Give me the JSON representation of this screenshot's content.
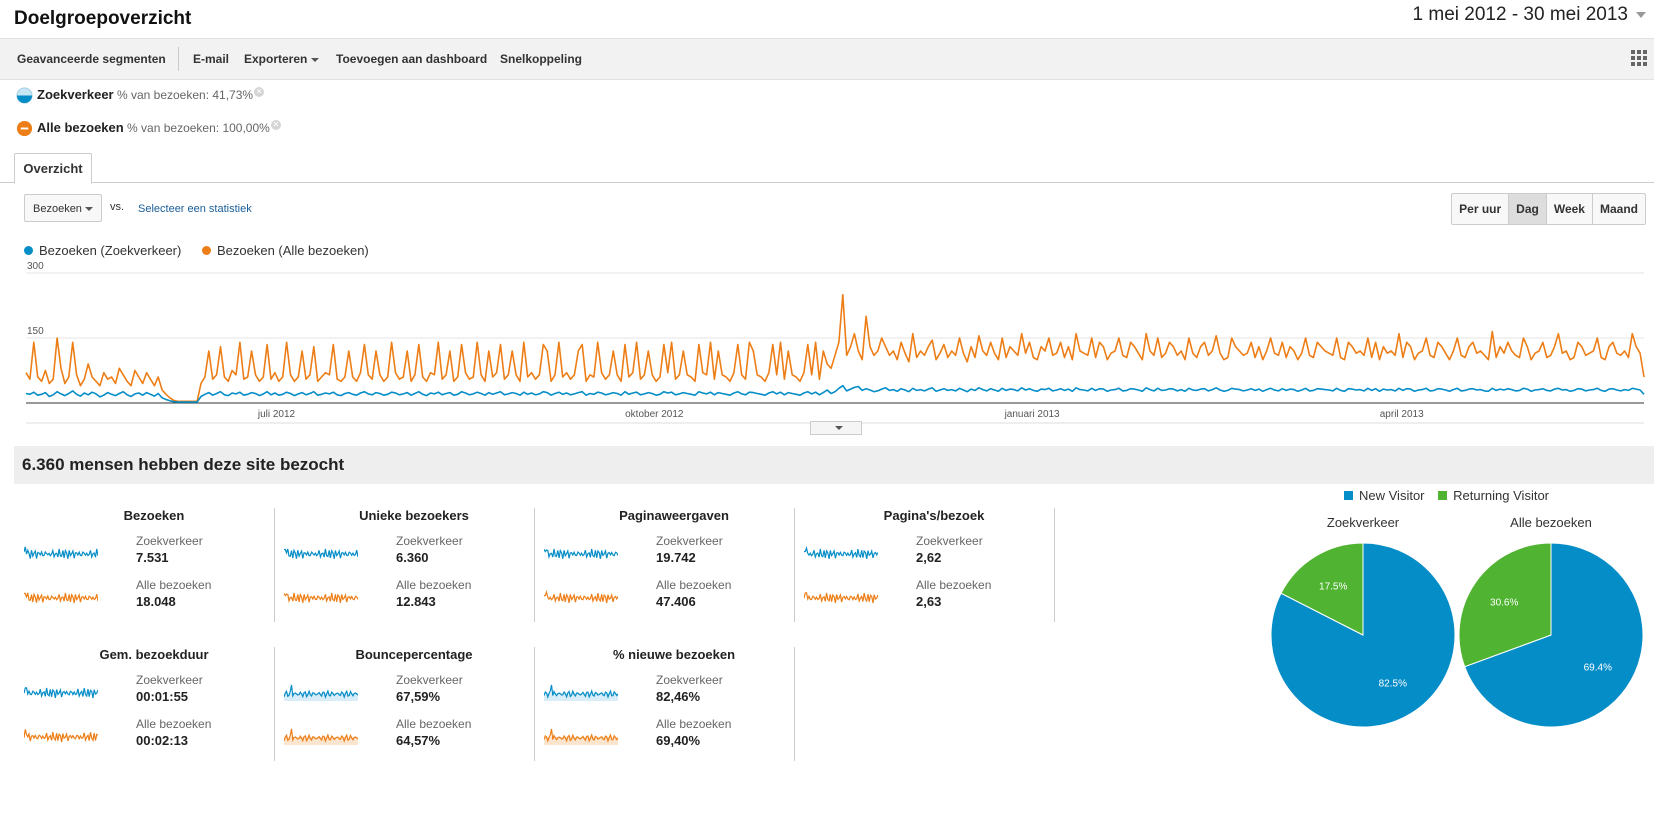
{
  "page": {
    "title": "Doelgroepoverzicht",
    "date_range": "1 mei 2012 - 30 mei 2013"
  },
  "toolbar": {
    "items": [
      "Geavanceerde segmenten",
      "E-mail",
      "Exporteren",
      "Toevoegen aan dashboard",
      "Snelkoppeling"
    ]
  },
  "segments": [
    {
      "name": "Zoekverkeer",
      "desc": "% van bezoeken: 41,73%",
      "color": "#058dc7"
    },
    {
      "name": "Alle bezoeken",
      "desc": "% van bezoeken: 100,00%",
      "color": "#ed7e17"
    }
  ],
  "tabs": {
    "overview": "Overzicht"
  },
  "controls": {
    "metric": "Bezoeken",
    "vs": "vs.",
    "select_stat": "Selecteer een statistiek",
    "periods": [
      "Per uur",
      "Dag",
      "Week",
      "Maand"
    ],
    "active_period": "Dag"
  },
  "colors": {
    "search": "#058dc7",
    "all": "#ed7e17",
    "new_visitor": "#058dc7",
    "returning_visitor": "#50b432"
  },
  "chart_data": [
    {
      "type": "line",
      "x_start": "2012-05-01",
      "x_end": "2013-05-30",
      "ylim": [
        0,
        300
      ],
      "yticks": [
        "300",
        "150"
      ],
      "xticks": [
        "juli 2012",
        "oktober 2012",
        "januari 2013",
        "april 2013"
      ],
      "grid": true,
      "legend": "top-left",
      "series": [
        {
          "name": "Bezoeken (Zoekverkeer)",
          "color": "#058dc7",
          "values": [
            22,
            20,
            25,
            18,
            20,
            24,
            15,
            19,
            26,
            21,
            17,
            22,
            28,
            20,
            16,
            23,
            19,
            25,
            21,
            14,
            18,
            24,
            20,
            17,
            22,
            26,
            19,
            15,
            21,
            23,
            18,
            24,
            20,
            16,
            22,
            12,
            8,
            5,
            3,
            2,
            2,
            2,
            2,
            2,
            2,
            15,
            20,
            24,
            18,
            22,
            26,
            19,
            17,
            23,
            21,
            25,
            18,
            20,
            24,
            22,
            17,
            21,
            26,
            19,
            23,
            18,
            20,
            25,
            22,
            17,
            21,
            24,
            19,
            22,
            26,
            18,
            20,
            23,
            21,
            25,
            19,
            17,
            22,
            24,
            20,
            18,
            23,
            26,
            21,
            19,
            24,
            22,
            18,
            20,
            25,
            23,
            19,
            21,
            24,
            18,
            22,
            26,
            20,
            17,
            23,
            21,
            25,
            19,
            22,
            24,
            18,
            20,
            26,
            23,
            19,
            21,
            25,
            22,
            18,
            24,
            20,
            23,
            26,
            19,
            21,
            24,
            22,
            18,
            25,
            20,
            23,
            19,
            21,
            26,
            24,
            18,
            22,
            25,
            20,
            23,
            19,
            21,
            24,
            26,
            18,
            22,
            20,
            25,
            23,
            19,
            21,
            24,
            22,
            18,
            26,
            20,
            23,
            25,
            19,
            21,
            24,
            22,
            18,
            20,
            26,
            23,
            25,
            19,
            21,
            24,
            22,
            20,
            18,
            26,
            23,
            21,
            25,
            19,
            24,
            22,
            20,
            18,
            23,
            26,
            21,
            19,
            25,
            24,
            22,
            20,
            18,
            23,
            26,
            21,
            25,
            19,
            24,
            22,
            20,
            18,
            23,
            26,
            21,
            25,
            19,
            24,
            30,
            22,
            26,
            34,
            40,
            28,
            32,
            36,
            38,
            29,
            33,
            30,
            26,
            28,
            32,
            35,
            29,
            31,
            27,
            33,
            30,
            26,
            34,
            29,
            31,
            28,
            32,
            35,
            27,
            30,
            33,
            29,
            31,
            28,
            34,
            30,
            26,
            32,
            29,
            35,
            31,
            28,
            33,
            30,
            27,
            34,
            29,
            32,
            31,
            28,
            35,
            30,
            33,
            29,
            27,
            32,
            31,
            34,
            28,
            30,
            33,
            29,
            32,
            27,
            35,
            31,
            30,
            28,
            34,
            29,
            33,
            32,
            27,
            30,
            31,
            34,
            28,
            29,
            33,
            32,
            30,
            27,
            35,
            31,
            28,
            34,
            29,
            30,
            33,
            32,
            28,
            31,
            27,
            34,
            30,
            29,
            32,
            33,
            28,
            31,
            35,
            30,
            27,
            29,
            34,
            32,
            31,
            28,
            30,
            33,
            29,
            32,
            27,
            31,
            34,
            30,
            28,
            33,
            29,
            32,
            31,
            27,
            30,
            34,
            28,
            29,
            33,
            32,
            31,
            30,
            28,
            34,
            29,
            27,
            33,
            32,
            30,
            31,
            28,
            34,
            29,
            33,
            27,
            32,
            30,
            31,
            28,
            34,
            29,
            33,
            32,
            27,
            30,
            31,
            34,
            28,
            29,
            33,
            32,
            30,
            27,
            31,
            34,
            28,
            29,
            32,
            33,
            30,
            31,
            28,
            27,
            34,
            29,
            32,
            30,
            33,
            31,
            28,
            29,
            34,
            32,
            27,
            30,
            31,
            33,
            29,
            28,
            32,
            34,
            30,
            31,
            27,
            29,
            33,
            32,
            28,
            30,
            31,
            34,
            29,
            27,
            32,
            33,
            30,
            28,
            31,
            29,
            34,
            32,
            30,
            20
          ]
        },
        {
          "name": "Bezoeken (Alle bezoeken)",
          "color": "#ed7e17",
          "values": [
            70,
            55,
            140,
            60,
            50,
            75,
            45,
            55,
            150,
            80,
            45,
            60,
            140,
            65,
            40,
            55,
            90,
            60,
            50,
            40,
            70,
            55,
            60,
            45,
            80,
            65,
            50,
            40,
            75,
            60,
            45,
            70,
            55,
            40,
            60,
            30,
            20,
            12,
            6,
            4,
            4,
            4,
            4,
            4,
            4,
            45,
            60,
            120,
            55,
            65,
            130,
            60,
            50,
            75,
            65,
            140,
            55,
            60,
            120,
            65,
            50,
            60,
            135,
            55,
            70,
            50,
            60,
            140,
            65,
            50,
            60,
            120,
            55,
            65,
            130,
            50,
            60,
            70,
            65,
            135,
            55,
            50,
            60,
            120,
            60,
            50,
            70,
            135,
            65,
            55,
            120,
            65,
            50,
            60,
            140,
            70,
            55,
            60,
            120,
            50,
            65,
            135,
            60,
            50,
            70,
            65,
            140,
            55,
            65,
            120,
            50,
            60,
            135,
            70,
            55,
            60,
            140,
            65,
            50,
            120,
            60,
            70,
            135,
            55,
            65,
            120,
            65,
            50,
            140,
            60,
            70,
            55,
            65,
            135,
            120,
            50,
            65,
            140,
            60,
            70,
            55,
            65,
            120,
            135,
            50,
            65,
            60,
            140,
            70,
            55,
            65,
            120,
            65,
            50,
            135,
            60,
            70,
            140,
            55,
            65,
            120,
            65,
            50,
            60,
            135,
            70,
            140,
            55,
            65,
            120,
            65,
            60,
            50,
            135,
            70,
            65,
            140,
            55,
            120,
            65,
            60,
            50,
            70,
            135,
            65,
            55,
            140,
            120,
            65,
            60,
            50,
            70,
            135,
            65,
            140,
            55,
            120,
            65,
            60,
            50,
            70,
            135,
            65,
            140,
            55,
            120,
            90,
            80,
            110,
            140,
            250,
            110,
            130,
            160,
            120,
            100,
            200,
            130,
            110,
            120,
            150,
            130,
            110,
            120,
            100,
            140,
            115,
            95,
            160,
            105,
            120,
            110,
            130,
            145,
            100,
            115,
            135,
            105,
            120,
            110,
            150,
            115,
            95,
            130,
            105,
            155,
            120,
            110,
            140,
            115,
            100,
            150,
            105,
            130,
            120,
            110,
            160,
            115,
            140,
            105,
            100,
            130,
            120,
            150,
            110,
            115,
            140,
            105,
            130,
            100,
            160,
            120,
            115,
            110,
            150,
            105,
            140,
            130,
            100,
            115,
            120,
            150,
            110,
            105,
            140,
            130,
            115,
            100,
            160,
            120,
            110,
            150,
            105,
            115,
            140,
            130,
            110,
            120,
            100,
            150,
            115,
            105,
            130,
            140,
            110,
            120,
            155,
            115,
            100,
            105,
            150,
            130,
            120,
            110,
            115,
            140,
            105,
            130,
            100,
            120,
            150,
            115,
            110,
            140,
            105,
            130,
            120,
            100,
            115,
            150,
            110,
            105,
            140,
            130,
            120,
            115,
            110,
            150,
            105,
            100,
            140,
            130,
            115,
            120,
            110,
            150,
            105,
            140,
            100,
            130,
            115,
            120,
            110,
            160,
            105,
            140,
            130,
            100,
            115,
            120,
            150,
            110,
            105,
            140,
            130,
            115,
            100,
            120,
            150,
            110,
            105,
            130,
            140,
            115,
            120,
            110,
            100,
            165,
            105,
            130,
            115,
            140,
            120,
            110,
            105,
            150,
            130,
            100,
            115,
            120,
            140,
            105,
            110,
            130,
            160,
            115,
            120,
            100,
            105,
            140,
            130,
            110,
            115,
            120,
            150,
            105,
            100,
            130,
            140,
            115,
            110,
            120,
            105,
            160,
            130,
            115,
            60
          ]
        }
      ]
    },
    {
      "type": "pie",
      "title": "Zoekverkeer",
      "categories": [
        "New Visitor",
        "Returning Visitor"
      ],
      "values": [
        82.5,
        17.5
      ],
      "labels": [
        "82.5%",
        "17.5%"
      ],
      "legend": "top"
    },
    {
      "type": "pie",
      "title": "Alle bezoeken",
      "categories": [
        "New Visitor",
        "Returning Visitor"
      ],
      "values": [
        69.4,
        30.6
      ],
      "labels": [
        "69.4%",
        "30.6%"
      ],
      "legend": "top"
    }
  ],
  "summary": {
    "title": "6.360 mensen hebben deze site bezocht",
    "label_search": "Zoekverkeer",
    "label_all": "Alle bezoeken",
    "metrics": [
      {
        "title": "Bezoeken",
        "search": "7.531",
        "all": "18.048"
      },
      {
        "title": "Unieke bezoekers",
        "search": "6.360",
        "all": "12.843"
      },
      {
        "title": "Paginaweergaven",
        "search": "19.742",
        "all": "47.406"
      },
      {
        "title": "Pagina's/bezoek",
        "search": "2,62",
        "all": "2,63"
      },
      {
        "title": "Gem. bezoekduur",
        "search": "00:01:55",
        "all": "00:02:13"
      },
      {
        "title": "Bouncepercentage",
        "search": "67,59%",
        "all": "64,57%"
      },
      {
        "title": "% nieuwe bezoeken",
        "search": "82,46%",
        "all": "69,40%"
      }
    ]
  },
  "pie_legend": [
    "New Visitor",
    "Returning Visitor"
  ]
}
